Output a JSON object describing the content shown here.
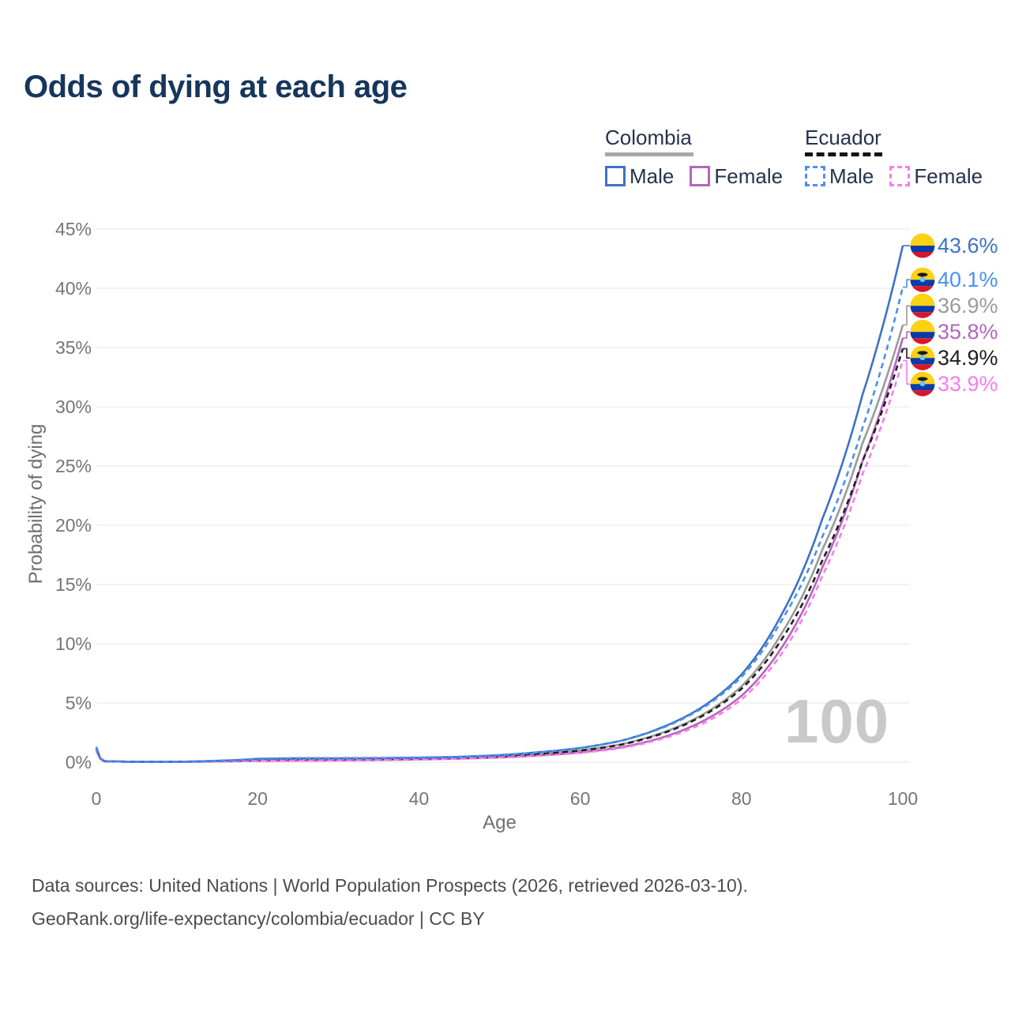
{
  "title": "Odds of dying at each age",
  "watermark": "100",
  "legend": {
    "groups": [
      {
        "label": "Colombia",
        "style": "solid",
        "items": [
          {
            "label": "Male"
          },
          {
            "label": "Female"
          }
        ]
      },
      {
        "label": "Ecuador",
        "style": "dashed",
        "items": [
          {
            "label": "Male"
          },
          {
            "label": "Female"
          }
        ]
      }
    ]
  },
  "footer": {
    "line1": "Data sources: United Nations | World Population Prospects (2026, retrieved 2026-03-10).",
    "line2": "GeoRank.org/life-expectancy/colombia/ecuador | CC BY"
  },
  "chart_data": {
    "type": "line",
    "title": "Odds of dying at each age",
    "xlabel": "Age",
    "ylabel": "Probability of dying",
    "xlim": [
      0,
      100
    ],
    "ylim": [
      0,
      45
    ],
    "x_ticks": [
      0,
      20,
      40,
      60,
      80,
      100
    ],
    "y_ticks_percent": [
      0,
      5,
      10,
      15,
      20,
      25,
      30,
      35,
      40,
      45
    ],
    "grid": "horizontal",
    "legend_position": "top-right",
    "series": [
      {
        "name": "Colombia Male",
        "country": "Colombia",
        "sex": "Male",
        "color": "#3e72c4",
        "dash": false,
        "flag": "colombia",
        "end_label": "43.6%",
        "end_value": 43.6,
        "points": [
          [
            0,
            1.2
          ],
          [
            1,
            0.09
          ],
          [
            5,
            0.04
          ],
          [
            10,
            0.04
          ],
          [
            15,
            0.12
          ],
          [
            20,
            0.28
          ],
          [
            25,
            0.33
          ],
          [
            30,
            0.33
          ],
          [
            35,
            0.34
          ],
          [
            40,
            0.38
          ],
          [
            45,
            0.45
          ],
          [
            50,
            0.6
          ],
          [
            55,
            0.85
          ],
          [
            60,
            1.2
          ],
          [
            65,
            1.8
          ],
          [
            70,
            2.9
          ],
          [
            75,
            4.6
          ],
          [
            80,
            7.4
          ],
          [
            85,
            12.5
          ],
          [
            90,
            20.5
          ],
          [
            95,
            31.0
          ],
          [
            100,
            43.6
          ]
        ]
      },
      {
        "name": "Ecuador Male",
        "country": "Ecuador",
        "sex": "Male",
        "color": "#4a90f2",
        "dash": true,
        "flag": "ecuador",
        "end_label": "40.1%",
        "end_value": 40.1,
        "points": [
          [
            0,
            1.3
          ],
          [
            1,
            0.09
          ],
          [
            5,
            0.04
          ],
          [
            10,
            0.04
          ],
          [
            15,
            0.13
          ],
          [
            20,
            0.3
          ],
          [
            25,
            0.35
          ],
          [
            30,
            0.35
          ],
          [
            35,
            0.36
          ],
          [
            40,
            0.4
          ],
          [
            45,
            0.46
          ],
          [
            50,
            0.6
          ],
          [
            55,
            0.85
          ],
          [
            60,
            1.2
          ],
          [
            65,
            1.8
          ],
          [
            70,
            2.85
          ],
          [
            75,
            4.5
          ],
          [
            80,
            7.2
          ],
          [
            85,
            12.0
          ],
          [
            90,
            19.0
          ],
          [
            95,
            28.2
          ],
          [
            100,
            40.1
          ]
        ]
      },
      {
        "name": "Colombia (both sexes)",
        "country": "Colombia",
        "sex": "Both",
        "color": "#9b9b9b",
        "dash": false,
        "flag": "colombia",
        "end_label": "36.9%",
        "end_value": 36.9,
        "points": [
          [
            0,
            1.1
          ],
          [
            1,
            0.08
          ],
          [
            5,
            0.035
          ],
          [
            10,
            0.035
          ],
          [
            15,
            0.09
          ],
          [
            20,
            0.2
          ],
          [
            25,
            0.24
          ],
          [
            30,
            0.24
          ],
          [
            35,
            0.26
          ],
          [
            40,
            0.3
          ],
          [
            45,
            0.37
          ],
          [
            50,
            0.49
          ],
          [
            55,
            0.7
          ],
          [
            60,
            1.0
          ],
          [
            65,
            1.5
          ],
          [
            70,
            2.45
          ],
          [
            75,
            3.95
          ],
          [
            80,
            6.4
          ],
          [
            85,
            10.9
          ],
          [
            90,
            17.9
          ],
          [
            95,
            26.9
          ],
          [
            100,
            36.9
          ]
        ]
      },
      {
        "name": "Colombia Female",
        "country": "Colombia",
        "sex": "Female",
        "color": "#b266bb",
        "dash": false,
        "flag": "colombia",
        "end_label": "35.8%",
        "end_value": 35.8,
        "points": [
          [
            0,
            0.95
          ],
          [
            1,
            0.07
          ],
          [
            5,
            0.03
          ],
          [
            10,
            0.03
          ],
          [
            15,
            0.06
          ],
          [
            20,
            0.11
          ],
          [
            25,
            0.13
          ],
          [
            30,
            0.15
          ],
          [
            35,
            0.18
          ],
          [
            40,
            0.23
          ],
          [
            45,
            0.3
          ],
          [
            50,
            0.4
          ],
          [
            55,
            0.57
          ],
          [
            60,
            0.82
          ],
          [
            65,
            1.25
          ],
          [
            70,
            2.05
          ],
          [
            75,
            3.4
          ],
          [
            80,
            5.6
          ],
          [
            85,
            9.7
          ],
          [
            90,
            16.4
          ],
          [
            95,
            25.4
          ],
          [
            100,
            35.8
          ]
        ]
      },
      {
        "name": "Ecuador (both sexes)",
        "country": "Ecuador",
        "sex": "Both",
        "color": "#1f1f1f",
        "dash": true,
        "flag": "ecuador",
        "end_label": "34.9%",
        "end_value": 34.9,
        "points": [
          [
            0,
            1.15
          ],
          [
            1,
            0.08
          ],
          [
            5,
            0.035
          ],
          [
            10,
            0.035
          ],
          [
            15,
            0.1
          ],
          [
            20,
            0.22
          ],
          [
            25,
            0.26
          ],
          [
            30,
            0.26
          ],
          [
            35,
            0.27
          ],
          [
            40,
            0.31
          ],
          [
            45,
            0.37
          ],
          [
            50,
            0.48
          ],
          [
            55,
            0.69
          ],
          [
            60,
            0.98
          ],
          [
            65,
            1.47
          ],
          [
            70,
            2.38
          ],
          [
            75,
            3.85
          ],
          [
            80,
            6.2
          ],
          [
            85,
            10.4
          ],
          [
            90,
            17.0
          ],
          [
            95,
            25.4
          ],
          [
            100,
            34.9
          ]
        ]
      },
      {
        "name": "Ecuador Female",
        "country": "Ecuador",
        "sex": "Female",
        "color": "#fb7ce8",
        "dash": true,
        "flag": "ecuador",
        "end_label": "33.9%",
        "end_value": 33.9,
        "points": [
          [
            0,
            1.0
          ],
          [
            1,
            0.07
          ],
          [
            5,
            0.03
          ],
          [
            10,
            0.03
          ],
          [
            15,
            0.06
          ],
          [
            20,
            0.12
          ],
          [
            25,
            0.14
          ],
          [
            30,
            0.16
          ],
          [
            35,
            0.19
          ],
          [
            40,
            0.24
          ],
          [
            45,
            0.3
          ],
          [
            50,
            0.39
          ],
          [
            55,
            0.55
          ],
          [
            60,
            0.79
          ],
          [
            65,
            1.18
          ],
          [
            70,
            1.95
          ],
          [
            75,
            3.2
          ],
          [
            80,
            5.3
          ],
          [
            85,
            9.2
          ],
          [
            90,
            15.7
          ],
          [
            95,
            24.3
          ],
          [
            100,
            33.9
          ]
        ]
      }
    ]
  }
}
